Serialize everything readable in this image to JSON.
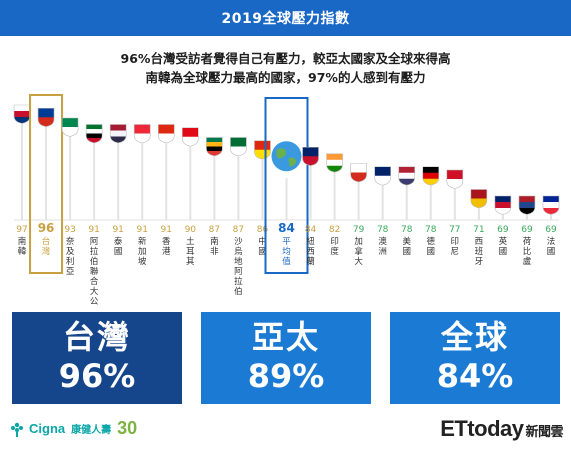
{
  "title": "2019全球壓力指數",
  "headline": [
    "96%台灣受訪者覺得自己有壓力，較亞太國家及全球來得高",
    "南韓為全球壓力最高的國家，97%的人感到有壓力"
  ],
  "chart_data": {
    "type": "bar",
    "title": "2019全球壓力指數",
    "categories": [
      "南韓",
      "台灣",
      "奈及利亞",
      "阿拉伯聯合大公國",
      "泰國",
      "新加坡",
      "香港",
      "土耳其",
      "南非",
      "沙烏地阿拉伯",
      "中國",
      "平均值",
      "紐西蘭",
      "印度",
      "加拿大",
      "澳洲",
      "美國",
      "德國",
      "印尼",
      "西班牙",
      "英國",
      "荷比盧",
      "法國"
    ],
    "values": [
      97,
      96,
      93,
      91,
      91,
      91,
      91,
      90,
      87,
      87,
      86,
      84,
      84,
      82,
      79,
      78,
      78,
      78,
      77,
      71,
      69,
      69,
      69
    ],
    "highlight": {
      "台灣": "#c8a040",
      "平均值": "#1a68c6"
    },
    "value_colors": {
      "default": "#c8a040",
      "low": "#3aaa5a",
      "avg": "#1a68c6"
    }
  },
  "cards": [
    {
      "label": "台灣",
      "value": "96%"
    },
    {
      "label": "亞太",
      "value": "89%"
    },
    {
      "label": "全球",
      "value": "84%"
    }
  ],
  "footer": {
    "logo": "Cigna",
    "logo_cn": "康健人壽",
    "logo_badge": "30",
    "brand": "ETtoday",
    "brand_cn": "新聞雲"
  },
  "colors": {
    "primary": "#1a68c6",
    "dark": "#15468c",
    "gold": "#c8a040",
    "green": "#3aaa5a",
    "teal": "#0aa6a8"
  }
}
